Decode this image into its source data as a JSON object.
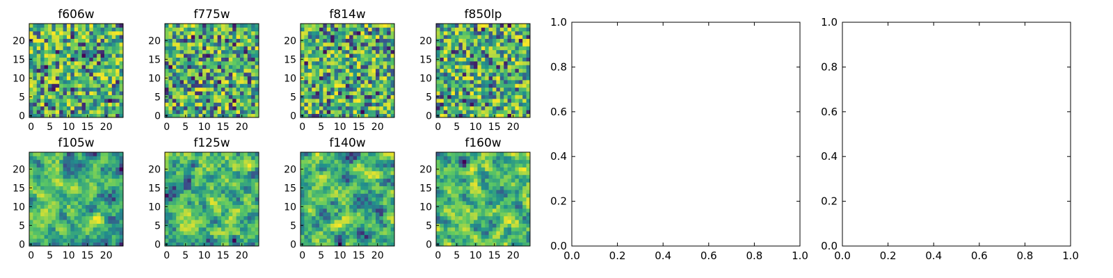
{
  "figure": {
    "colormap": "viridis",
    "colormap_stops": [
      "#440154",
      "#3b528b",
      "#21918c",
      "#5ec962",
      "#fde725"
    ],
    "frame_color": "#000000",
    "background": "#ffffff"
  },
  "chart_data": [
    {
      "type": "heatmap",
      "title": "f606w",
      "xlim": [
        -0.5,
        24.5
      ],
      "ylim": [
        -0.5,
        24.5
      ],
      "xticks": [
        0,
        5,
        10,
        15,
        20
      ],
      "yticks": [
        0,
        5,
        10,
        15,
        20
      ],
      "grid": false,
      "value_range": [
        0,
        1
      ],
      "pattern_seed": 11,
      "smooth": 0
    },
    {
      "type": "heatmap",
      "title": "f775w",
      "xlim": [
        -0.5,
        24.5
      ],
      "ylim": [
        -0.5,
        24.5
      ],
      "xticks": [
        0,
        5,
        10,
        15,
        20
      ],
      "yticks": [
        0,
        5,
        10,
        15,
        20
      ],
      "grid": false,
      "value_range": [
        0,
        1
      ],
      "pattern_seed": 23,
      "smooth": 0
    },
    {
      "type": "heatmap",
      "title": "f814w",
      "xlim": [
        -0.5,
        24.5
      ],
      "ylim": [
        -0.5,
        24.5
      ],
      "xticks": [
        0,
        5,
        10,
        15,
        20
      ],
      "yticks": [
        0,
        5,
        10,
        15,
        20
      ],
      "grid": false,
      "value_range": [
        0,
        1
      ],
      "pattern_seed": 37,
      "smooth": 0
    },
    {
      "type": "heatmap",
      "title": "f850lp",
      "xlim": [
        -0.5,
        24.5
      ],
      "ylim": [
        -0.5,
        24.5
      ],
      "xticks": [
        0,
        5,
        10,
        15,
        20
      ],
      "yticks": [
        0,
        5,
        10,
        15,
        20
      ],
      "grid": false,
      "value_range": [
        0,
        1
      ],
      "pattern_seed": 41,
      "smooth": 0
    },
    {
      "type": "line",
      "title": "",
      "xlim": [
        0,
        1
      ],
      "ylim": [
        0,
        1
      ],
      "xticks": [
        "0.0",
        "0.2",
        "0.4",
        "0.6",
        "0.8",
        "1.0"
      ],
      "yticks": [
        "0.0",
        "0.2",
        "0.4",
        "0.6",
        "0.8",
        "1.0"
      ],
      "series": [],
      "grid": false
    },
    {
      "type": "heatmap",
      "title": "f105w",
      "xlim": [
        -0.5,
        24.5
      ],
      "ylim": [
        -0.5,
        24.5
      ],
      "xticks": [
        0,
        5,
        10,
        15,
        20
      ],
      "yticks": [
        0,
        5,
        10,
        15,
        20
      ],
      "grid": false,
      "value_range": [
        0,
        1
      ],
      "pattern_seed": 53,
      "smooth": 1
    },
    {
      "type": "heatmap",
      "title": "f125w",
      "xlim": [
        -0.5,
        24.5
      ],
      "ylim": [
        -0.5,
        24.5
      ],
      "xticks": [
        0,
        5,
        10,
        15,
        20
      ],
      "yticks": [
        0,
        5,
        10,
        15,
        20
      ],
      "grid": false,
      "value_range": [
        0,
        1
      ],
      "pattern_seed": 67,
      "smooth": 1
    },
    {
      "type": "heatmap",
      "title": "f140w",
      "xlim": [
        -0.5,
        24.5
      ],
      "ylim": [
        -0.5,
        24.5
      ],
      "xticks": [
        0,
        5,
        10,
        15,
        20
      ],
      "yticks": [
        0,
        5,
        10,
        15,
        20
      ],
      "grid": false,
      "value_range": [
        0,
        1
      ],
      "pattern_seed": 71,
      "smooth": 1
    },
    {
      "type": "heatmap",
      "title": "f160w",
      "xlim": [
        -0.5,
        24.5
      ],
      "ylim": [
        -0.5,
        24.5
      ],
      "xticks": [
        0,
        5,
        10,
        15,
        20
      ],
      "yticks": [
        0,
        5,
        10,
        15,
        20
      ],
      "grid": false,
      "value_range": [
        0,
        1
      ],
      "pattern_seed": 89,
      "smooth": 1
    },
    {
      "type": "line",
      "title": "",
      "xlim": [
        0,
        1
      ],
      "ylim": [
        0,
        1
      ],
      "xticks": [
        "0.0",
        "0.2",
        "0.4",
        "0.6",
        "0.8",
        "1.0"
      ],
      "yticks": [
        "0.0",
        "0.2",
        "0.4",
        "0.6",
        "0.8",
        "1.0"
      ],
      "series": [],
      "grid": false
    }
  ]
}
